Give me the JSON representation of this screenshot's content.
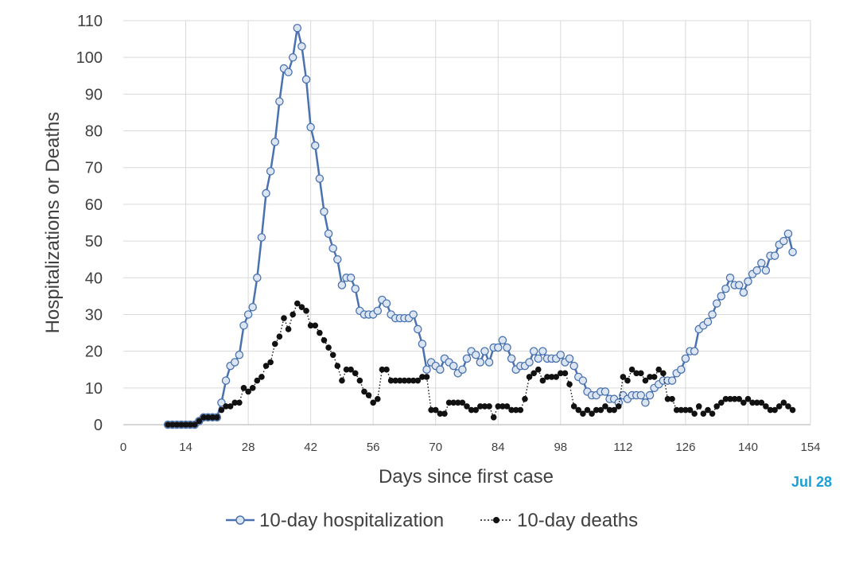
{
  "chart_data": {
    "type": "line",
    "xlabel": "Days since first case",
    "ylabel": "Hospitalizations or Deaths",
    "xlim": [
      0,
      154
    ],
    "ylim": [
      0,
      110
    ],
    "xticks": [
      0,
      14,
      28,
      42,
      56,
      70,
      84,
      98,
      112,
      126,
      140,
      154
    ],
    "yticks": [
      0,
      10,
      20,
      30,
      40,
      50,
      60,
      70,
      80,
      90,
      100,
      110
    ],
    "grid": true,
    "legend_position": "bottom",
    "annotation": {
      "text": "Jul 28",
      "color": "#1aa0d8"
    },
    "series": [
      {
        "name": "10-day hospitalization",
        "color": "#4a72b0",
        "marker_fill": "#dce6f3",
        "line_style": "solid",
        "x": [
          10,
          11,
          12,
          13,
          14,
          15,
          16,
          17,
          18,
          19,
          20,
          21,
          22,
          23,
          24,
          25,
          26,
          27,
          28,
          29,
          30,
          31,
          32,
          33,
          34,
          35,
          36,
          37,
          38,
          39,
          40,
          41,
          42,
          43,
          44,
          45,
          46,
          47,
          48,
          49,
          50,
          51,
          52,
          53,
          54,
          55,
          56,
          57,
          58,
          59,
          60,
          61,
          62,
          63,
          64,
          65,
          66,
          67,
          68,
          69,
          70,
          71,
          72,
          73,
          74,
          75,
          76,
          77,
          78,
          79,
          80,
          81,
          82,
          83,
          84,
          85,
          86,
          87,
          88,
          89,
          90,
          91,
          92,
          93,
          94,
          95,
          96,
          97,
          98,
          99,
          100,
          101,
          102,
          103,
          104,
          105,
          106,
          107,
          108,
          109,
          110,
          111,
          112,
          113,
          114,
          115,
          116,
          117,
          118,
          119,
          120,
          121,
          122,
          123,
          124,
          125,
          126,
          127,
          128,
          129,
          130,
          131,
          132,
          133,
          134,
          135,
          136,
          137,
          138,
          139,
          140,
          141,
          142,
          143,
          144,
          145,
          146,
          147,
          148,
          149,
          150
        ],
        "y": [
          0,
          0,
          0,
          0,
          0,
          0,
          0,
          1,
          2,
          2,
          2,
          2,
          6,
          12,
          16,
          17,
          19,
          27,
          30,
          32,
          40,
          51,
          63,
          69,
          77,
          88,
          97,
          96,
          100,
          108,
          103,
          94,
          81,
          76,
          67,
          58,
          52,
          48,
          45,
          38,
          40,
          40,
          37,
          31,
          30,
          30,
          30,
          31,
          34,
          33,
          30,
          29,
          29,
          29,
          29,
          30,
          26,
          22,
          15,
          17,
          16,
          15,
          18,
          17,
          16,
          14,
          15,
          18,
          20,
          19,
          17,
          20,
          17,
          21,
          21,
          23,
          21,
          18,
          15,
          16,
          16,
          17,
          20,
          18,
          20,
          18,
          18,
          18,
          19,
          17,
          18,
          16,
          13,
          12,
          9,
          8,
          8,
          9,
          9,
          7,
          7,
          6,
          8,
          7,
          8,
          8,
          8,
          6,
          8,
          10,
          11,
          12,
          12,
          12,
          14,
          15,
          18,
          20,
          20,
          26,
          27,
          28,
          30,
          33,
          35,
          37,
          40,
          38,
          38,
          36,
          39,
          41,
          42,
          44,
          42,
          46,
          46,
          49,
          50,
          52,
          47
        ]
      },
      {
        "name": "10-day deaths",
        "color": "#111111",
        "marker_fill": "#111111",
        "line_style": "dotted",
        "x": [
          10,
          11,
          12,
          13,
          14,
          15,
          16,
          17,
          18,
          19,
          20,
          21,
          22,
          23,
          24,
          25,
          26,
          27,
          28,
          29,
          30,
          31,
          32,
          33,
          34,
          35,
          36,
          37,
          38,
          39,
          40,
          41,
          42,
          43,
          44,
          45,
          46,
          47,
          48,
          49,
          50,
          51,
          52,
          53,
          54,
          55,
          56,
          57,
          58,
          59,
          60,
          61,
          62,
          63,
          64,
          65,
          66,
          67,
          68,
          69,
          70,
          71,
          72,
          73,
          74,
          75,
          76,
          77,
          78,
          79,
          80,
          81,
          82,
          83,
          84,
          85,
          86,
          87,
          88,
          89,
          90,
          91,
          92,
          93,
          94,
          95,
          96,
          97,
          98,
          99,
          100,
          101,
          102,
          103,
          104,
          105,
          106,
          107,
          108,
          109,
          110,
          111,
          112,
          113,
          114,
          115,
          116,
          117,
          118,
          119,
          120,
          121,
          122,
          123,
          124,
          125,
          126,
          127,
          128,
          129,
          130,
          131,
          132,
          133,
          134,
          135,
          136,
          137,
          138,
          139,
          140,
          141,
          142,
          143,
          144,
          145,
          146,
          147,
          148,
          149,
          150
        ],
        "y": [
          0,
          0,
          0,
          0,
          0,
          0,
          0,
          1,
          2,
          2,
          2,
          2,
          4,
          5,
          5,
          6,
          6,
          10,
          9,
          10,
          12,
          13,
          16,
          17,
          22,
          24,
          29,
          26,
          30,
          33,
          32,
          31,
          27,
          27,
          25,
          23,
          21,
          19,
          16,
          12,
          15,
          15,
          14,
          12,
          9,
          8,
          6,
          7,
          15,
          15,
          12,
          12,
          12,
          12,
          12,
          12,
          12,
          13,
          13,
          4,
          4,
          3,
          3,
          6,
          6,
          6,
          6,
          5,
          4,
          4,
          5,
          5,
          5,
          2,
          5,
          5,
          5,
          4,
          4,
          4,
          7,
          13,
          14,
          15,
          12,
          13,
          13,
          13,
          14,
          14,
          11,
          5,
          4,
          3,
          4,
          3,
          4,
          4,
          5,
          4,
          4,
          5,
          13,
          12,
          15,
          14,
          14,
          12,
          13,
          13,
          15,
          14,
          7,
          7,
          4,
          4,
          4,
          4,
          3,
          5,
          3,
          4,
          3,
          5,
          6,
          7,
          7,
          7,
          7,
          6,
          7,
          6,
          6,
          6,
          5,
          4,
          4,
          5,
          6,
          5,
          4
        ]
      }
    ]
  }
}
